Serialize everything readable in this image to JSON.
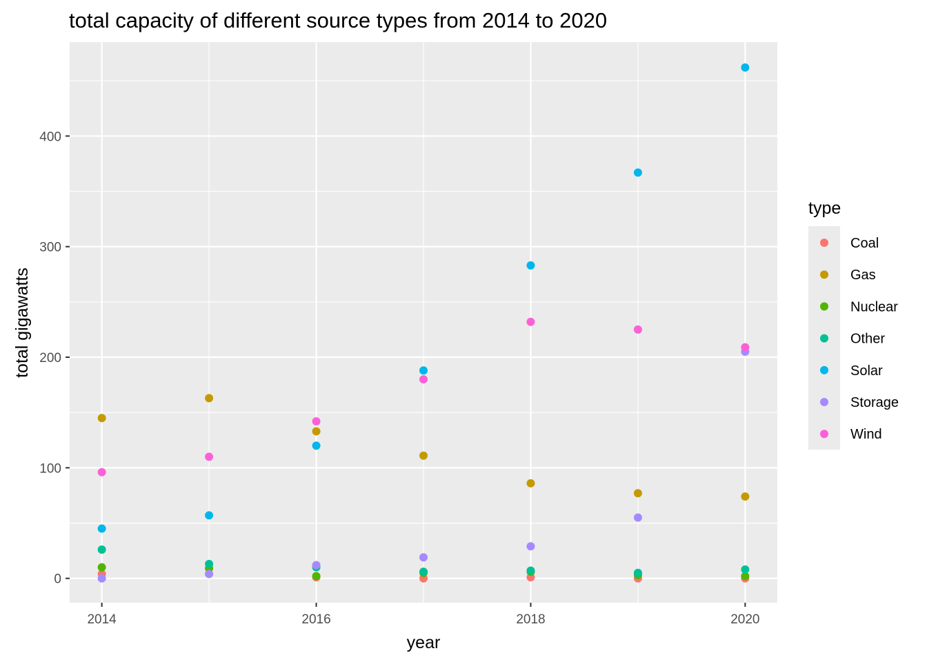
{
  "chart_data": {
    "type": "scatter",
    "title": "total capacity of different source types from 2014 to 2020",
    "xlabel": "year",
    "ylabel": "total gigawatts",
    "xlim": [
      2013.7,
      2020.3
    ],
    "ylim": [
      -22,
      485
    ],
    "x_ticks": [
      2014,
      2016,
      2018,
      2020
    ],
    "x_tick_labels": [
      "2014",
      "2016",
      "2018",
      "2020"
    ],
    "y_ticks": [
      0,
      100,
      200,
      300,
      400
    ],
    "y_tick_labels": [
      "0",
      "100",
      "200",
      "300",
      "400"
    ],
    "grid": true,
    "legend": {
      "title": "type",
      "position": "right"
    },
    "x": [
      2014,
      2015,
      2016,
      2017,
      2018,
      2019,
      2020
    ],
    "series": [
      {
        "name": "Coal",
        "color": "#F8766D",
        "values": [
          4,
          4,
          1,
          0,
          1,
          0,
          0
        ]
      },
      {
        "name": "Gas",
        "color": "#C49A00",
        "values": [
          145,
          163,
          133,
          111,
          86,
          77,
          74
        ]
      },
      {
        "name": "Nuclear",
        "color": "#53B400",
        "values": [
          10,
          9,
          2,
          5,
          6,
          3,
          2
        ]
      },
      {
        "name": "Other",
        "color": "#00C094",
        "values": [
          26,
          13,
          10,
          6,
          7,
          5,
          8
        ]
      },
      {
        "name": "Solar",
        "color": "#00B6EB",
        "values": [
          45,
          57,
          120,
          188,
          283,
          367,
          462
        ]
      },
      {
        "name": "Storage",
        "color": "#A58AFF",
        "values": [
          0,
          4,
          12,
          19,
          29,
          55,
          205
        ]
      },
      {
        "name": "Wind",
        "color": "#FB61D7",
        "values": [
          96,
          110,
          142,
          180,
          232,
          225,
          209
        ]
      }
    ]
  }
}
